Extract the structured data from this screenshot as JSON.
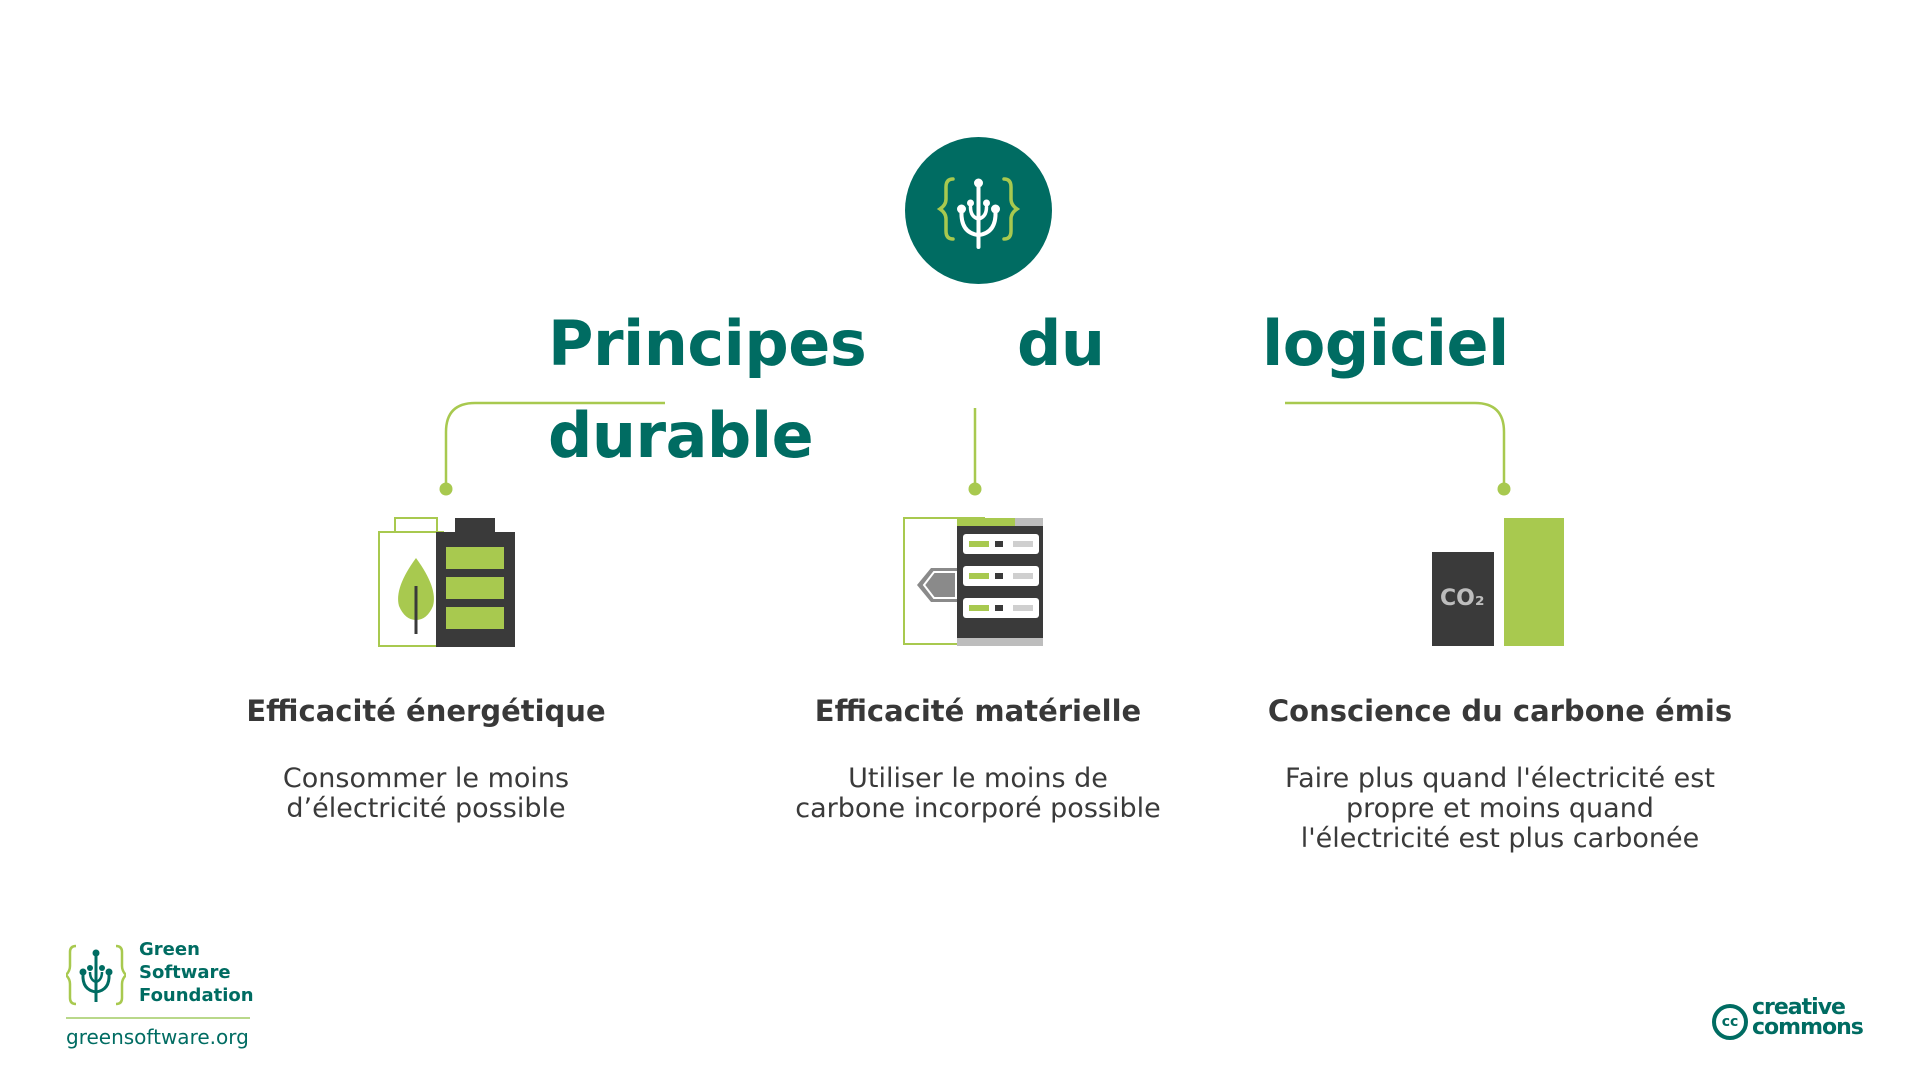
{
  "title": {
    "word1": "Principes",
    "word2": "du",
    "word3": "logiciel",
    "word4": "durable"
  },
  "pillars": [
    {
      "icon": "battery-leaf-icon",
      "title": "Efficacité énergétique",
      "description": "Consommer le moins\nd’électricité possible"
    },
    {
      "icon": "server-rack-icon",
      "title": "Efficacité matérielle",
      "description": "Utiliser le moins de\ncarbone incorporé possible"
    },
    {
      "icon": "co2-bars-icon",
      "title": "Conscience du carbone émis",
      "description": "Faire plus quand l'électricité est\npropre et moins quand\nl'électricité est plus carbonée",
      "icon_label": "CO₂"
    }
  ],
  "footer": {
    "org_name": "Green\nSoftware\nFoundation",
    "url": "greensoftware.org",
    "cc_badge": "cc",
    "cc_text": "creative\ncommons"
  },
  "colors": {
    "brand_teal": "#006c62",
    "accent_green": "#a8c94f",
    "dark_gray": "#3a3a3a",
    "text": "#383838"
  }
}
